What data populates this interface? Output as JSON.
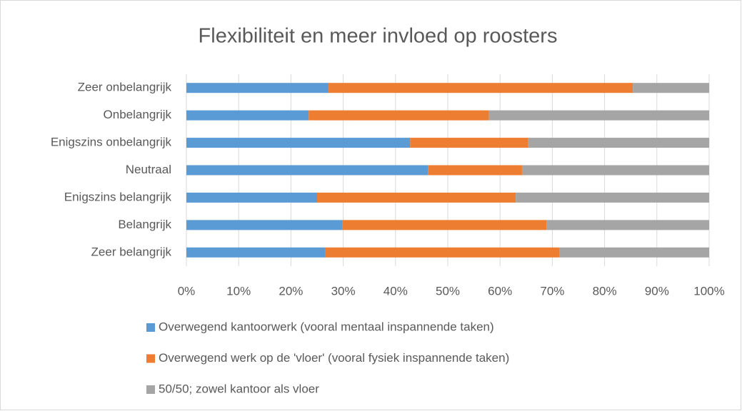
{
  "chart_data": {
    "type": "stacked_bar_horizontal",
    "title": "Flexibiliteit en meer invloed op roosters",
    "categories": [
      "Zeer onbelangrijk",
      "Onbelangrijk",
      "Enigszins onbelangrijk",
      "Neutraal",
      "Enigszins belangrijk",
      "Belangrijk",
      "Zeer belangrijk"
    ],
    "series": [
      {
        "name": "Overwegend kantoorwerk (vooral mentaal inspannende taken)",
        "color": "#5b9bd5",
        "values": [
          27.2,
          23.4,
          42.8,
          46.2,
          25.0,
          29.9,
          26.5
        ]
      },
      {
        "name": "Overwegend werk op de 'vloer' (vooral fysiek inspannende taken)",
        "color": "#ed7d31",
        "values": [
          58.2,
          34.5,
          22.6,
          18.0,
          38.0,
          39.0,
          44.9
        ]
      },
      {
        "name": "50/50; zowel kantoor als vloer",
        "color": "#a5a5a5",
        "values": [
          14.6,
          42.1,
          34.6,
          35.8,
          37.0,
          31.1,
          28.6
        ]
      }
    ],
    "xlim": [
      0,
      100
    ],
    "xticks": [
      {
        "value": 0,
        "label": "0%"
      },
      {
        "value": 10,
        "label": "10%"
      },
      {
        "value": 20,
        "label": "20%"
      },
      {
        "value": 30,
        "label": "30%"
      },
      {
        "value": 40,
        "label": "40%"
      },
      {
        "value": 50,
        "label": "50%"
      },
      {
        "value": 60,
        "label": "60%"
      },
      {
        "value": 70,
        "label": "70%"
      },
      {
        "value": 80,
        "label": "80%"
      },
      {
        "value": 90,
        "label": "90%"
      },
      {
        "value": 100,
        "label": "100%"
      }
    ],
    "grid": true,
    "legend": "bottom"
  }
}
